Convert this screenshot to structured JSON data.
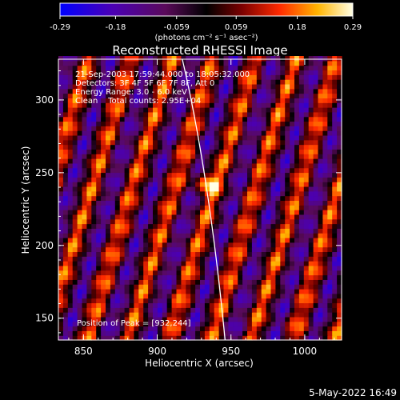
{
  "chart_data": {
    "type": "heatmap",
    "title": "Reconstructed RHESSI Image",
    "xlabel": "Heliocentric X (arcsec)",
    "ylabel": "Heliocentric Y (arcsec)",
    "xlim": [
      833,
      1025
    ],
    "ylim": [
      135,
      328
    ],
    "x_ticks": [
      "850",
      "900",
      "950",
      "1000"
    ],
    "y_ticks": [
      "150",
      "200",
      "250",
      "300"
    ],
    "colorbar": {
      "range": [
        -0.29,
        0.29
      ],
      "tick_labels": [
        "-0.29",
        "-0.18",
        "-0.059",
        "0.059",
        "0.18",
        "0.29"
      ],
      "units_label": "(photons cm⁻² s⁻¹ asec⁻²)"
    },
    "annotations": [
      "21-Sep-2003 17:59:44.000 to 18:05:32.000",
      "Detectors: 3F 4F 5F 6F 7F 8F, Att 0",
      "Energy Range: 3.0 - 6.0 keV",
      "Clean    Total counts: 2.95E+04"
    ],
    "peak_label": "Position of Peak = [932,244]",
    "peak": {
      "x": 932,
      "y": 244,
      "value": 0.29
    },
    "stripe_pattern": {
      "period_arcsec": 28,
      "slope_dx_per_dy": 0.3,
      "amplitude": 0.16
    },
    "limb_curve": [
      [
        917,
        328
      ],
      [
        935,
        250
      ],
      [
        946,
        135
      ]
    ],
    "colors": {
      "background": "#000000",
      "text": "#ffffff",
      "limb": "#ffffff"
    }
  },
  "footer": {
    "timestamp": "5-May-2022 16:49"
  }
}
